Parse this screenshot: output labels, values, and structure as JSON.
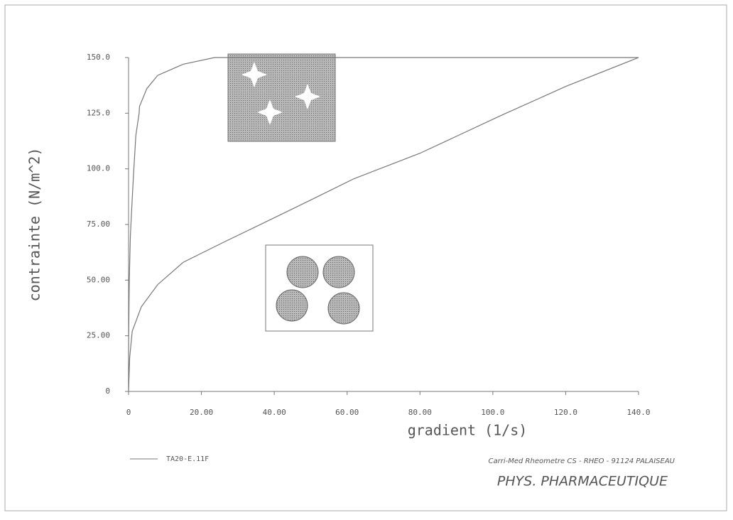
{
  "chart_data": {
    "type": "line",
    "xlabel": "gradient  (1/s)",
    "ylabel": "contrainte  (N/m^2)",
    "annotations": [
      "Carri-Med Rheometre CS - RHEO - 91124 PALAISEAU",
      "PHYS. PHARMACEUTIQUE"
    ],
    "xlim": [
      0,
      140
    ],
    "ylim": [
      0,
      150
    ],
    "xticks": [
      0,
      {
        "value": 20,
        "label": "20.00"
      },
      {
        "value": 40,
        "label": "40.00"
      },
      {
        "value": 60,
        "label": "60.00"
      },
      {
        "value": 80,
        "label": "80.00"
      },
      {
        "value": 100,
        "label": "100.0"
      },
      {
        "value": 120,
        "label": "120.0"
      },
      {
        "value": 140,
        "label": "140.0"
      }
    ],
    "yticks": [
      0,
      {
        "value": 25,
        "label": "25.00"
      },
      {
        "value": 50,
        "label": "50.00"
      },
      {
        "value": 75,
        "label": "75.00"
      },
      {
        "value": 100,
        "label": "100.0"
      },
      {
        "value": 125,
        "label": "125.0"
      },
      {
        "value": 150,
        "label": "150.0"
      }
    ],
    "series": [
      {
        "name": "TA20-E.11F",
        "color": "#777777",
        "x": [
          0,
          0.3,
          1,
          3.5,
          8,
          15,
          25.7,
          40,
          50,
          61.8,
          80,
          102.3,
          120,
          140,
          23.6,
          15,
          8,
          5,
          3,
          2.9,
          2,
          1.4,
          0.8,
          0.5,
          0.2,
          0,
          0
        ],
        "values": [
          0,
          15,
          27,
          38,
          48,
          58,
          66.7,
          78,
          86,
          95.5,
          107,
          124,
          137,
          150,
          150,
          147,
          142,
          136,
          128,
          125,
          115,
          98.6,
          80,
          70,
          50,
          20,
          0
        ]
      }
    ]
  }
}
